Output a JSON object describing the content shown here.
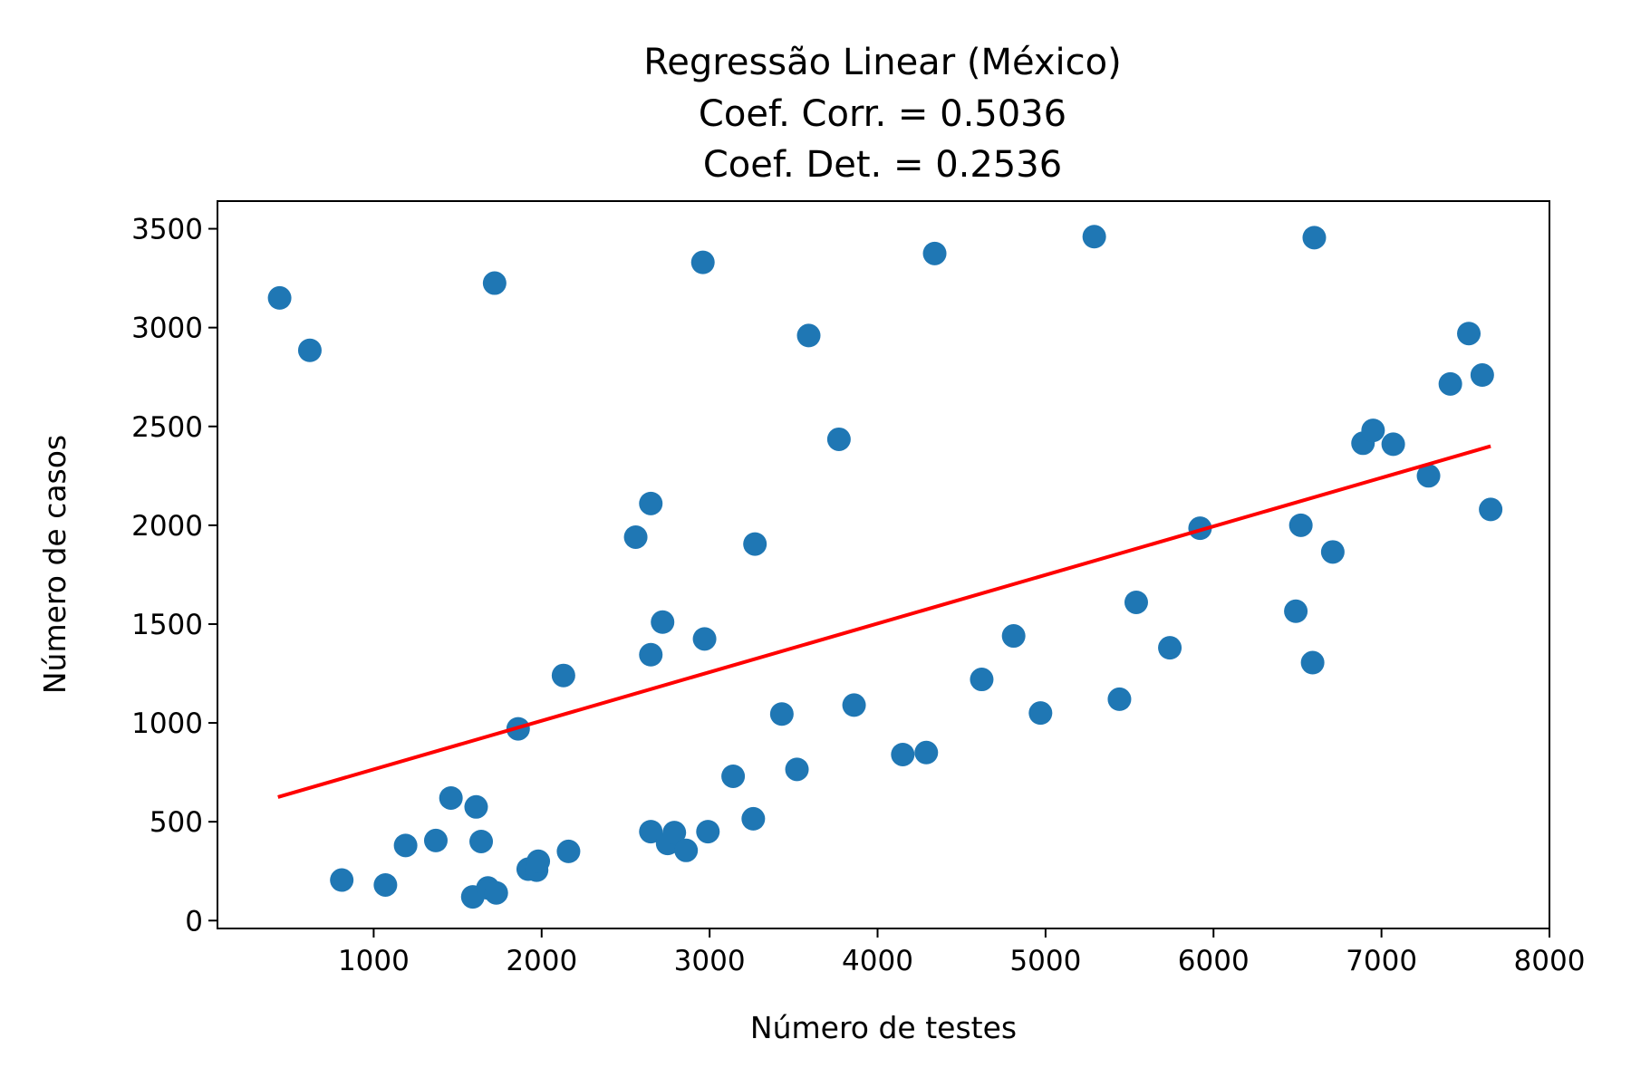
{
  "chart_data": {
    "type": "scatter",
    "title": [
      "Regressão Linear (México)",
      "Coef. Corr. = 0.5036",
      "Coef. Det. = 0.2536"
    ],
    "xlabel": "Número de testes",
    "ylabel": "Número de casos",
    "xlim": [
      70,
      8000
    ],
    "ylim": [
      -40,
      3640
    ],
    "xticks": [
      1000,
      2000,
      3000,
      4000,
      5000,
      6000,
      7000,
      8000
    ],
    "yticks": [
      0,
      500,
      1000,
      1500,
      2000,
      2500,
      3000,
      3500
    ],
    "grid": false,
    "colors": {
      "points": "#1f77b4",
      "line": "#ff0000"
    },
    "series": [
      {
        "type": "scatter",
        "points": [
          [
            440,
            3150
          ],
          [
            620,
            2885
          ],
          [
            810,
            205
          ],
          [
            1070,
            180
          ],
          [
            1190,
            380
          ],
          [
            1370,
            405
          ],
          [
            1460,
            620
          ],
          [
            1590,
            120
          ],
          [
            1610,
            575
          ],
          [
            1640,
            400
          ],
          [
            1680,
            165
          ],
          [
            1720,
            3225
          ],
          [
            1730,
            140
          ],
          [
            1860,
            970
          ],
          [
            1920,
            260
          ],
          [
            1970,
            255
          ],
          [
            1980,
            300
          ],
          [
            2130,
            1240
          ],
          [
            2160,
            350
          ],
          [
            2560,
            1940
          ],
          [
            2650,
            2110
          ],
          [
            2650,
            1345
          ],
          [
            2650,
            450
          ],
          [
            2720,
            1510
          ],
          [
            2750,
            390
          ],
          [
            2790,
            445
          ],
          [
            2860,
            355
          ],
          [
            2960,
            3330
          ],
          [
            2970,
            1425
          ],
          [
            2990,
            450
          ],
          [
            3140,
            730
          ],
          [
            3260,
            515
          ],
          [
            3270,
            1905
          ],
          [
            3430,
            1045
          ],
          [
            3520,
            765
          ],
          [
            3590,
            2960
          ],
          [
            3770,
            2435
          ],
          [
            3860,
            1090
          ],
          [
            4150,
            840
          ],
          [
            4290,
            850
          ],
          [
            4340,
            3375
          ],
          [
            4620,
            1220
          ],
          [
            4810,
            1440
          ],
          [
            4970,
            1050
          ],
          [
            5290,
            3460
          ],
          [
            5440,
            1120
          ],
          [
            5540,
            1610
          ],
          [
            5740,
            1380
          ],
          [
            5920,
            1985
          ],
          [
            6490,
            1565
          ],
          [
            6520,
            2000
          ],
          [
            6590,
            1305
          ],
          [
            6600,
            3455
          ],
          [
            6710,
            1865
          ],
          [
            6890,
            2415
          ],
          [
            6950,
            2480
          ],
          [
            7070,
            2410
          ],
          [
            7280,
            2250
          ],
          [
            7410,
            2715
          ],
          [
            7520,
            2970
          ],
          [
            7600,
            2760
          ],
          [
            7650,
            2080
          ]
        ]
      },
      {
        "type": "line",
        "points": [
          [
            430,
            625
          ],
          [
            7650,
            2400
          ]
        ]
      }
    ]
  }
}
